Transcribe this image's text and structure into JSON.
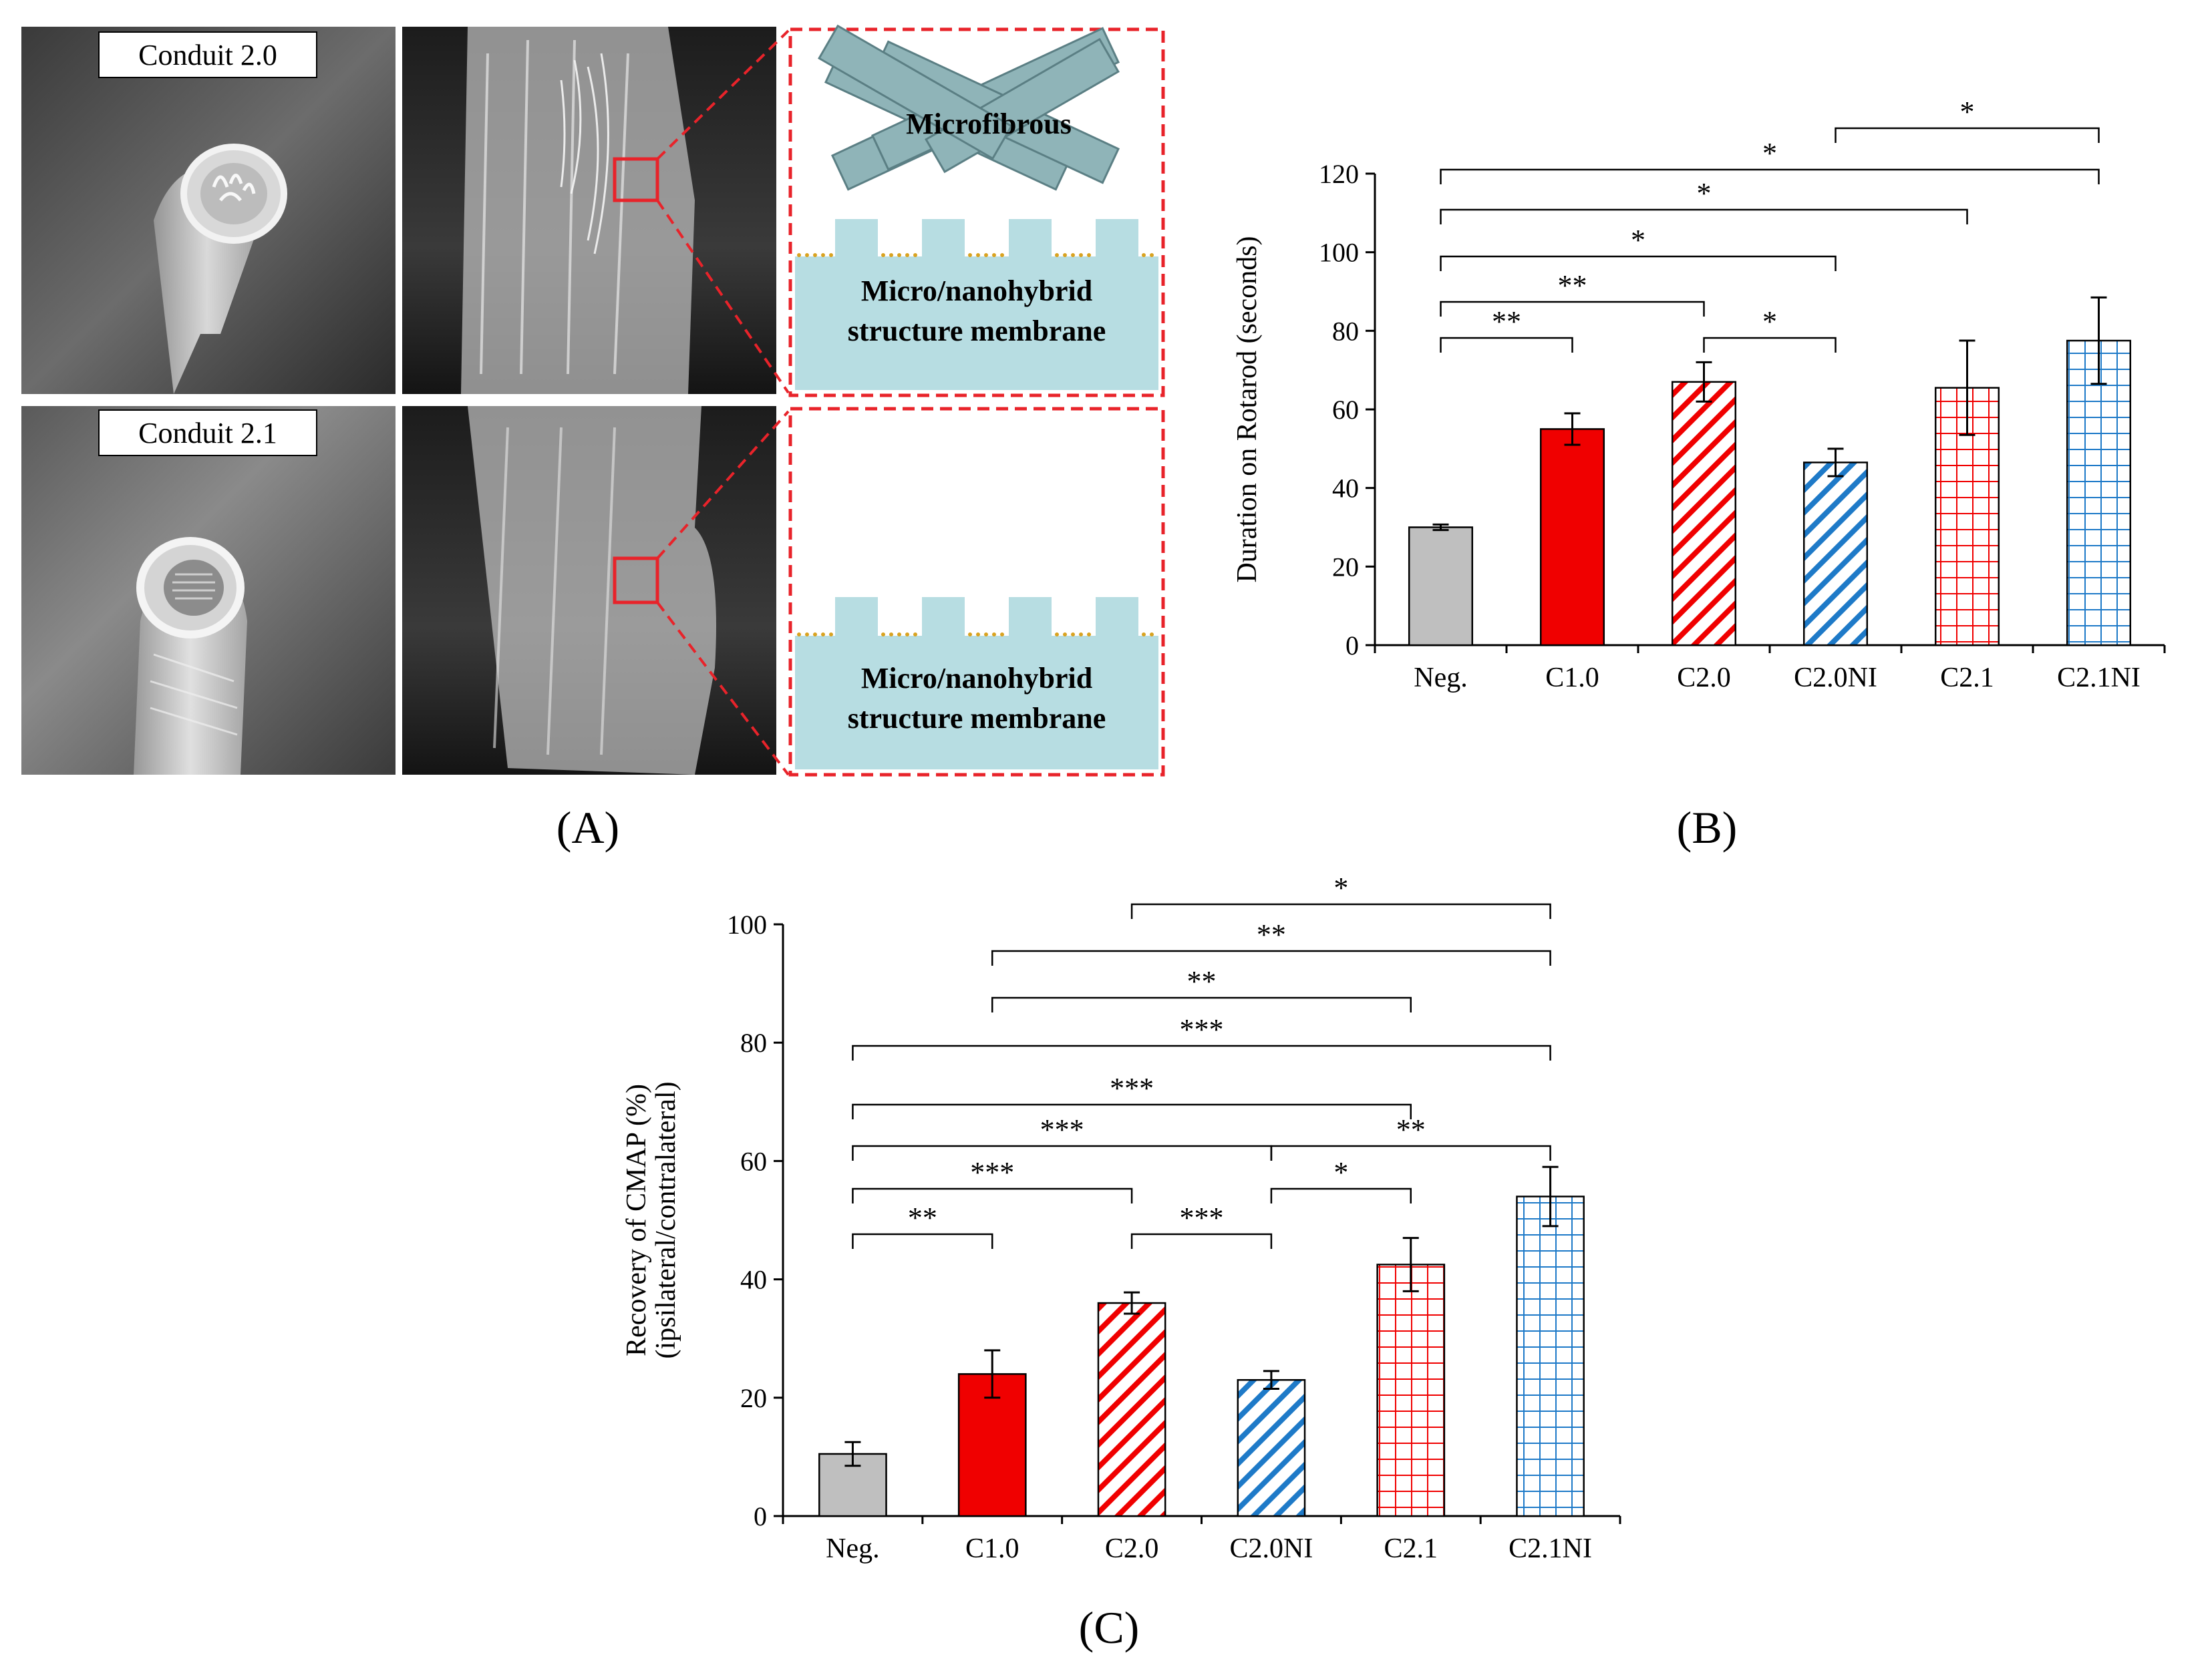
{
  "panel_labels": {
    "A": "(A)",
    "B": "(B)",
    "C": "(C)"
  },
  "panel_a": {
    "photo_labels": [
      "Conduit 2.0",
      "Conduit 2.1"
    ],
    "diagram_top": {
      "fiber_label": "Microfibrous",
      "membrane_line1": "Micro/nanohybrid",
      "membrane_line2": "structure membrane"
    },
    "diagram_bottom": {
      "membrane_line1": "Micro/nanohybrid",
      "membrane_line2": "structure membrane"
    },
    "colors": {
      "membrane": "#b7dde2",
      "fiber": "#8fb4b8",
      "fiber_edge": "#5b7f84",
      "nano_dots": "#d9a321",
      "dashed_box": "#e8232a",
      "zoom_box": "#e8232a"
    }
  },
  "chart_data": [
    {
      "panel": "B",
      "type": "bar",
      "categories": [
        "Neg.",
        "C1.0",
        "C2.0",
        "C2.0NI",
        "C2.1",
        "C2.1NI"
      ],
      "values": [
        30,
        55,
        67,
        46.5,
        65.5,
        77.5
      ],
      "errors": [
        0.7,
        4,
        5,
        3.5,
        12,
        11
      ],
      "ylabel": "Duration on Rotarod (seconds)",
      "ylim": [
        0,
        120
      ],
      "yticks": [
        "0",
        "20",
        "40",
        "60",
        "80",
        "100",
        "120"
      ],
      "styles": [
        "gray",
        "solid-red",
        "hatch-red",
        "hatch-blue",
        "grid-red",
        "grid-blue"
      ],
      "significance": [
        {
          "from": 0,
          "to": 1,
          "label": "**"
        },
        {
          "from": 0,
          "to": 2,
          "label": "**"
        },
        {
          "from": 2,
          "to": 3,
          "label": "*"
        },
        {
          "from": 0,
          "to": 3,
          "label": "*"
        },
        {
          "from": 0,
          "to": 4,
          "label": "*"
        },
        {
          "from": 0,
          "to": 5,
          "label": "*"
        },
        {
          "from": 3,
          "to": 5,
          "label": "*"
        }
      ]
    },
    {
      "panel": "C",
      "type": "bar",
      "categories": [
        "Neg.",
        "C1.0",
        "C2.0",
        "C2.0NI",
        "C2.1",
        "C2.1NI"
      ],
      "values": [
        10.5,
        24,
        36,
        23,
        42.5,
        54
      ],
      "errors": [
        2,
        4,
        1.8,
        1.5,
        4.5,
        5
      ],
      "ylabel_line1": "Recovery of CMAP (%)",
      "ylabel_line2": "(ipsilateral/contralateral)",
      "ylim": [
        0,
        100
      ],
      "yticks": [
        "0",
        "20",
        "40",
        "60",
        "80",
        "100"
      ],
      "styles": [
        "gray",
        "solid-red",
        "hatch-red",
        "hatch-blue",
        "grid-red",
        "grid-blue"
      ],
      "significance": [
        {
          "from": 0,
          "to": 1,
          "label": "**"
        },
        {
          "from": 2,
          "to": 3,
          "label": "***"
        },
        {
          "from": 3,
          "to": 4,
          "label": "*"
        },
        {
          "from": 0,
          "to": 2,
          "label": "***"
        },
        {
          "from": 0,
          "to": 3,
          "label": "***"
        },
        {
          "from": 3,
          "to": 5,
          "label": "**"
        },
        {
          "from": 0,
          "to": 4,
          "label": "***"
        },
        {
          "from": 0,
          "to": 5,
          "label": "***"
        },
        {
          "from": 1,
          "to": 4,
          "label": "**"
        },
        {
          "from": 1,
          "to": 5,
          "label": "**"
        },
        {
          "from": 2,
          "to": 5,
          "label": "*"
        }
      ]
    }
  ],
  "colors": {
    "red": "#f00000",
    "blue": "#1e7ac8",
    "gray": "#bfbfbf",
    "axis": "#000000"
  }
}
